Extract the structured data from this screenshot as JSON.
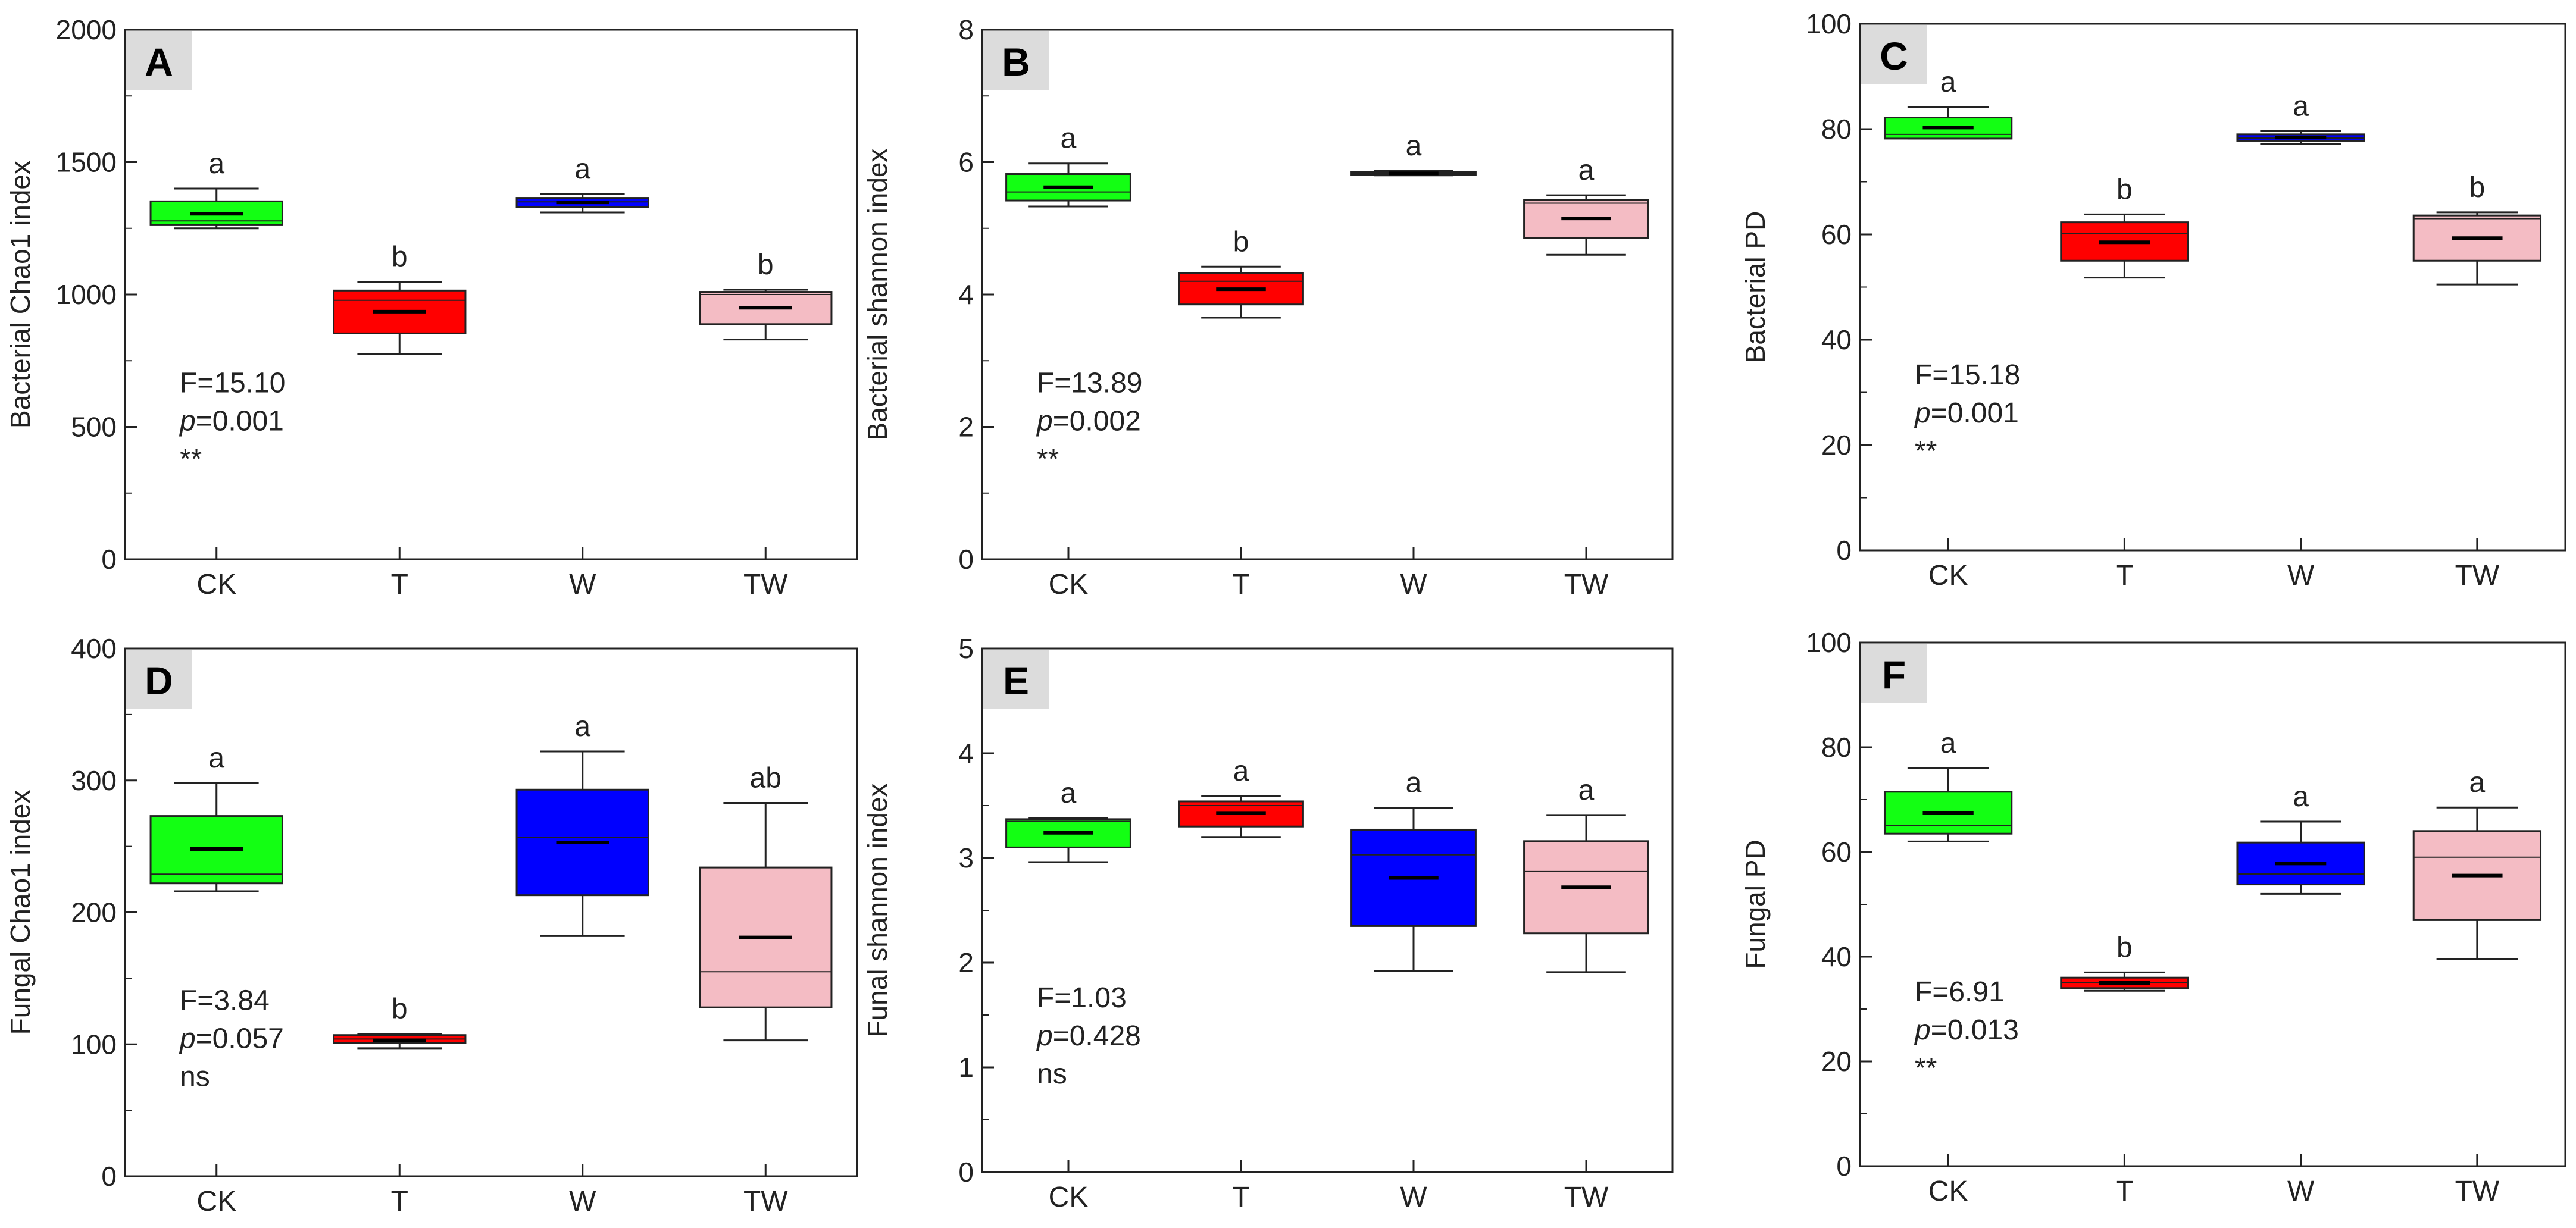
{
  "chart_data": [
    {
      "panel": "A",
      "type": "box",
      "ylabel": "Bacterial Chao1 index",
      "ylim": [
        0,
        2000
      ],
      "yticks": [
        "0",
        "500",
        "1000",
        "1500",
        "2000"
      ],
      "yticks_v": [
        0,
        500,
        1000,
        1500,
        2000
      ],
      "categories": [
        "CK",
        "T",
        "W",
        "TW"
      ],
      "boxes": [
        {
          "min": 1250,
          "q1": 1262,
          "median": 1278,
          "q3": 1352,
          "max": 1400,
          "mean": 1305,
          "letter": "a"
        },
        {
          "min": 775,
          "q1": 853,
          "median": 978,
          "q3": 1015,
          "max": 1048,
          "mean": 935,
          "letter": "b"
        },
        {
          "min": 1310,
          "q1": 1330,
          "median": 1350,
          "q3": 1365,
          "max": 1380,
          "mean": 1348,
          "letter": "a"
        },
        {
          "min": 830,
          "q1": 888,
          "median": 1000,
          "q3": 1010,
          "max": 1018,
          "mean": 950,
          "letter": "b"
        }
      ],
      "stats": {
        "f": "F=15.10",
        "p_label": "p",
        "p_value": "=0.001",
        "sig": "**"
      }
    },
    {
      "panel": "B",
      "type": "box",
      "ylabel": "Bacterial shannon index",
      "ylim": [
        0,
        8
      ],
      "yticks": [
        "0",
        "2",
        "4",
        "6",
        "8"
      ],
      "yticks_v": [
        0,
        2,
        4,
        6,
        8
      ],
      "categories": [
        "CK",
        "T",
        "W",
        "TW"
      ],
      "boxes": [
        {
          "min": 5.33,
          "q1": 5.42,
          "median": 5.55,
          "q3": 5.82,
          "max": 5.98,
          "mean": 5.62,
          "letter": "a"
        },
        {
          "min": 3.65,
          "q1": 3.85,
          "median": 4.2,
          "q3": 4.32,
          "max": 4.42,
          "mean": 4.08,
          "letter": "b"
        },
        {
          "min": 5.8,
          "q1": 5.81,
          "median": 5.83,
          "q3": 5.85,
          "max": 5.87,
          "mean": 5.83,
          "letter": "a"
        },
        {
          "min": 4.6,
          "q1": 4.85,
          "median": 5.38,
          "q3": 5.43,
          "max": 5.5,
          "mean": 5.15,
          "letter": "a"
        }
      ],
      "stats": {
        "f": "F=13.89",
        "p_label": "p",
        "p_value": "=0.002",
        "sig": "**"
      }
    },
    {
      "panel": "C",
      "type": "box",
      "ylabel": "Bacterial PD",
      "ylim": [
        0,
        100
      ],
      "yticks": [
        "0",
        "20",
        "40",
        "60",
        "80",
        "100"
      ],
      "yticks_v": [
        0,
        20,
        40,
        60,
        80,
        100
      ],
      "categories": [
        "CK",
        "T",
        "W",
        "TW"
      ],
      "boxes": [
        {
          "min": 78.2,
          "q1": 78.2,
          "median": 79.0,
          "q3": 82.2,
          "max": 84.2,
          "mean": 80.3,
          "letter": "a"
        },
        {
          "min": 51.8,
          "q1": 55.0,
          "median": 60.2,
          "q3": 62.3,
          "max": 63.8,
          "mean": 58.5,
          "letter": "b"
        },
        {
          "min": 77.2,
          "q1": 77.8,
          "median": 78.3,
          "q3": 79.0,
          "max": 79.6,
          "mean": 78.4,
          "letter": "a"
        },
        {
          "min": 50.5,
          "q1": 55.0,
          "median": 63.0,
          "q3": 63.6,
          "max": 64.2,
          "mean": 59.3,
          "letter": "b"
        }
      ],
      "stats": {
        "f": "F=15.18",
        "p_label": "p",
        "p_value": "=0.001",
        "sig": "**"
      }
    },
    {
      "panel": "D",
      "type": "box",
      "ylabel": "Fungal Chao1 index",
      "ylim": [
        0,
        400
      ],
      "yticks": [
        "0",
        "100",
        "200",
        "300",
        "400"
      ],
      "yticks_v": [
        0,
        100,
        200,
        300,
        400
      ],
      "categories": [
        "CK",
        "T",
        "W",
        "TW"
      ],
      "boxes": [
        {
          "min": 216,
          "q1": 222,
          "median": 229,
          "q3": 273,
          "max": 298,
          "mean": 248,
          "letter": "a"
        },
        {
          "min": 97,
          "q1": 101,
          "median": 104,
          "q3": 107,
          "max": 108,
          "mean": 103,
          "letter": "b"
        },
        {
          "min": 182,
          "q1": 213,
          "median": 257,
          "q3": 293,
          "max": 322,
          "mean": 253,
          "letter": "a"
        },
        {
          "min": 103,
          "q1": 128,
          "median": 155,
          "q3": 234,
          "max": 283,
          "mean": 181,
          "letter": "ab"
        }
      ],
      "stats": {
        "f": "F=3.84",
        "p_label": "p",
        "p_value": "=0.057",
        "sig": "ns"
      }
    },
    {
      "panel": "E",
      "type": "box",
      "ylabel": "Funal shannon index",
      "ylim": [
        0,
        5
      ],
      "yticks": [
        "0",
        "1",
        "2",
        "3",
        "4",
        "5"
      ],
      "yticks_v": [
        0,
        1,
        2,
        3,
        4,
        5
      ],
      "categories": [
        "CK",
        "T",
        "W",
        "TW"
      ],
      "boxes": [
        {
          "min": 2.96,
          "q1": 3.1,
          "median": 3.35,
          "q3": 3.37,
          "max": 3.38,
          "mean": 3.24,
          "letter": "a"
        },
        {
          "min": 3.2,
          "q1": 3.3,
          "median": 3.5,
          "q3": 3.54,
          "max": 3.59,
          "mean": 3.43,
          "letter": "a"
        },
        {
          "min": 1.92,
          "q1": 2.35,
          "median": 3.03,
          "q3": 3.27,
          "max": 3.48,
          "mean": 2.81,
          "letter": "a"
        },
        {
          "min": 1.91,
          "q1": 2.28,
          "median": 2.87,
          "q3": 3.16,
          "max": 3.41,
          "mean": 2.72,
          "letter": "a"
        }
      ],
      "stats": {
        "f": "F=1.03",
        "p_label": "p",
        "p_value": "=0.428",
        "sig": "ns"
      }
    },
    {
      "panel": "F",
      "type": "box",
      "ylabel": "Fungal PD",
      "ylim": [
        0,
        100
      ],
      "yticks": [
        "0",
        "20",
        "40",
        "60",
        "80",
        "100"
      ],
      "yticks_v": [
        0,
        20,
        40,
        60,
        80,
        100
      ],
      "categories": [
        "CK",
        "T",
        "W",
        "TW"
      ],
      "boxes": [
        {
          "min": 62,
          "q1": 63.5,
          "median": 65,
          "q3": 71.5,
          "max": 76,
          "mean": 67.5,
          "letter": "a"
        },
        {
          "min": 33.5,
          "q1": 34,
          "median": 35,
          "q3": 36,
          "max": 37,
          "mean": 35,
          "letter": "b"
        },
        {
          "min": 52,
          "q1": 53.8,
          "median": 55.8,
          "q3": 61.8,
          "max": 65.8,
          "mean": 57.8,
          "letter": "a"
        },
        {
          "min": 39.5,
          "q1": 47,
          "median": 59,
          "q3": 64,
          "max": 68.5,
          "mean": 55.5,
          "letter": "a"
        }
      ],
      "stats": {
        "f": "F=6.91",
        "p_label": "p",
        "p_value": "=0.013",
        "sig": "**"
      }
    }
  ],
  "colors": {
    "box_fill": [
      "#13ff13",
      "#ff0000",
      "#0000ff",
      "#f4bcc4"
    ],
    "axis": "#222222",
    "label_bg": "#dcdcdc"
  }
}
